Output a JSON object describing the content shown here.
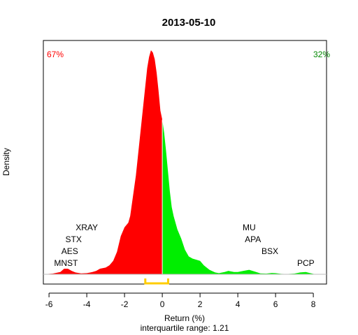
{
  "chart_data": {
    "type": "area",
    "title": "2013-05-10",
    "xlabel": "Return (%)",
    "sublabel": "interquartile range: 1.21",
    "ylabel": "Density",
    "xlim": [
      -6.3,
      8.7
    ],
    "ylim": [
      0,
      1.0
    ],
    "x_ticks": [
      -6,
      -4,
      -2,
      0,
      2,
      4,
      6,
      8
    ],
    "x_tick_labels": [
      "-6",
      "-4",
      "-2",
      "0",
      "2",
      "4",
      "6",
      "8"
    ],
    "split_at": 0,
    "negative_share_label": "67%",
    "positive_share_label": "32%",
    "negative_color": "#ff0000",
    "positive_color": "#00ee00",
    "iqr": {
      "low": -0.9,
      "high": 0.31,
      "color": "#ffcc00"
    },
    "density": {
      "x": [
        -6.3,
        -5.8,
        -5.4,
        -5.2,
        -5.0,
        -4.8,
        -4.6,
        -4.3,
        -4.0,
        -3.7,
        -3.5,
        -3.3,
        -3.0,
        -2.8,
        -2.6,
        -2.4,
        -2.2,
        -2.0,
        -1.9,
        -1.8,
        -1.7,
        -1.6,
        -1.5,
        -1.4,
        -1.3,
        -1.2,
        -1.1,
        -1.0,
        -0.9,
        -0.8,
        -0.7,
        -0.6,
        -0.5,
        -0.4,
        -0.3,
        -0.2,
        -0.1,
        0.0,
        0.1,
        0.2,
        0.3,
        0.4,
        0.5,
        0.6,
        0.8,
        1.0,
        1.2,
        1.4,
        1.6,
        1.8,
        2.0,
        2.2,
        2.5,
        2.8,
        3.0,
        3.3,
        3.5,
        3.8,
        4.0,
        4.3,
        4.6,
        4.9,
        5.2,
        5.5,
        5.8,
        6.0,
        6.3,
        6.6,
        7.0,
        7.3,
        7.6,
        7.8,
        8.0,
        8.3,
        8.7
      ],
      "y": [
        0,
        0.003,
        0.01,
        0.025,
        0.025,
        0.015,
        0.008,
        0.004,
        0.005,
        0.01,
        0.015,
        0.025,
        0.03,
        0.04,
        0.06,
        0.1,
        0.17,
        0.21,
        0.22,
        0.23,
        0.26,
        0.32,
        0.38,
        0.44,
        0.52,
        0.6,
        0.68,
        0.76,
        0.84,
        0.92,
        0.97,
        1.0,
        0.99,
        0.96,
        0.9,
        0.82,
        0.73,
        0.69,
        0.63,
        0.55,
        0.46,
        0.37,
        0.3,
        0.26,
        0.2,
        0.16,
        0.11,
        0.08,
        0.07,
        0.065,
        0.06,
        0.04,
        0.02,
        0.008,
        0.005,
        0.01,
        0.015,
        0.01,
        0.01,
        0.015,
        0.02,
        0.012,
        0.004,
        0.003,
        0.006,
        0.005,
        0.002,
        0.001,
        0.003,
        0.008,
        0.01,
        0.006,
        0.002,
        0.0,
        0.0
      ]
    },
    "annotations": [
      {
        "text": "XRAY",
        "x": -4.0,
        "row": 3
      },
      {
        "text": "STX",
        "x": -4.7,
        "row": 2
      },
      {
        "text": "AES",
        "x": -4.9,
        "row": 1
      },
      {
        "text": "MNST",
        "x": -5.1,
        "row": 0
      },
      {
        "text": "MU",
        "x": 4.6,
        "row": 3
      },
      {
        "text": "APA",
        "x": 4.8,
        "row": 2
      },
      {
        "text": "BSX",
        "x": 5.7,
        "row": 1
      },
      {
        "text": "PCP",
        "x": 7.6,
        "row": 0
      }
    ]
  }
}
